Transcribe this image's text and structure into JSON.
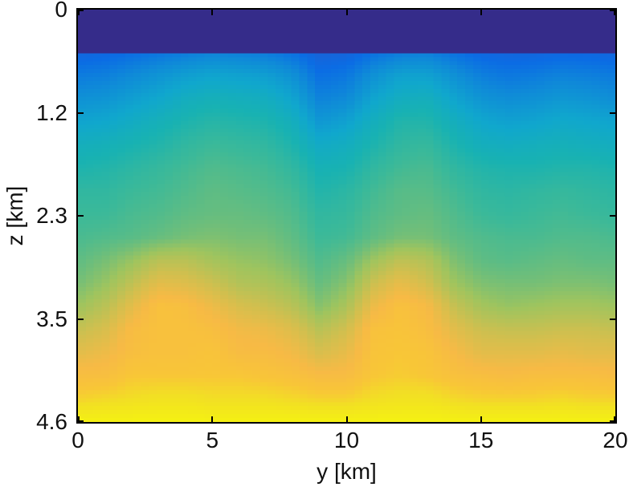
{
  "figure": {
    "background_color": "#ffffff",
    "frame_color": "#000000",
    "text_color": "#111111"
  },
  "chart_data": {
    "type": "heatmap",
    "title": "",
    "xlabel": "y [km]",
    "ylabel": "z [km]",
    "xlim": [
      0,
      20
    ],
    "zlim": [
      0,
      4.6
    ],
    "x_ticks": [
      "0",
      "5",
      "10",
      "15",
      "20"
    ],
    "x_tick_values": [
      0,
      5,
      10,
      15,
      20
    ],
    "z_ticks": [
      "0",
      "1.2",
      "2.3",
      "3.5",
      "4.6"
    ],
    "z_tick_values": [
      0,
      1.15,
      2.3,
      3.45,
      4.6
    ],
    "grid_lines": false,
    "legend": "none",
    "colormap": {
      "name": "parula-like",
      "stops": [
        [
          0.0,
          "#352c8a"
        ],
        [
          0.1,
          "#3351c1"
        ],
        [
          0.25,
          "#0b6ce4"
        ],
        [
          0.33,
          "#0f8ad8"
        ],
        [
          0.42,
          "#10a7cd"
        ],
        [
          0.5,
          "#18b2b2"
        ],
        [
          0.57,
          "#3bb999"
        ],
        [
          0.64,
          "#6dbe7b"
        ],
        [
          0.7,
          "#9fc45e"
        ],
        [
          0.78,
          "#d2bf4e"
        ],
        [
          0.85,
          "#f7ba45"
        ],
        [
          0.9,
          "#f8c637"
        ],
        [
          0.94,
          "#f2df24"
        ],
        [
          1.0,
          "#f4f112"
        ]
      ]
    },
    "water_layer": {
      "depth_km": 0.47,
      "value": 0.0
    },
    "grid": {
      "comment": "Normalized velocity values v in [0,1]; rows top-to-bottom spanning z0..z1 km, cols left-to-right spanning x0..x1 km",
      "x0": 0,
      "x1": 20,
      "z0": 0.47,
      "z1": 4.6,
      "ncols": 21,
      "nrows": 17,
      "values": [
        [
          0.22,
          0.23,
          0.25,
          0.27,
          0.29,
          0.31,
          0.3,
          0.29,
          0.26,
          0.2,
          0.21,
          0.26,
          0.29,
          0.3,
          0.26,
          0.23,
          0.22,
          0.22,
          0.23,
          0.23,
          0.22
        ],
        [
          0.29,
          0.3,
          0.33,
          0.36,
          0.39,
          0.41,
          0.4,
          0.39,
          0.35,
          0.26,
          0.28,
          0.35,
          0.4,
          0.4,
          0.35,
          0.3,
          0.28,
          0.29,
          0.31,
          0.3,
          0.29
        ],
        [
          0.35,
          0.36,
          0.39,
          0.42,
          0.46,
          0.48,
          0.47,
          0.46,
          0.41,
          0.31,
          0.33,
          0.41,
          0.46,
          0.47,
          0.41,
          0.36,
          0.34,
          0.35,
          0.37,
          0.36,
          0.34
        ],
        [
          0.41,
          0.42,
          0.45,
          0.48,
          0.51,
          0.53,
          0.52,
          0.51,
          0.47,
          0.37,
          0.4,
          0.47,
          0.52,
          0.52,
          0.47,
          0.42,
          0.4,
          0.41,
          0.43,
          0.42,
          0.41
        ],
        [
          0.47,
          0.48,
          0.5,
          0.52,
          0.55,
          0.57,
          0.56,
          0.55,
          0.51,
          0.44,
          0.46,
          0.51,
          0.55,
          0.56,
          0.51,
          0.47,
          0.46,
          0.47,
          0.48,
          0.47,
          0.46
        ],
        [
          0.51,
          0.52,
          0.54,
          0.56,
          0.58,
          0.6,
          0.59,
          0.58,
          0.55,
          0.49,
          0.5,
          0.55,
          0.58,
          0.59,
          0.55,
          0.52,
          0.51,
          0.51,
          0.52,
          0.52,
          0.51
        ],
        [
          0.55,
          0.55,
          0.57,
          0.58,
          0.6,
          0.62,
          0.61,
          0.6,
          0.58,
          0.52,
          0.54,
          0.58,
          0.61,
          0.61,
          0.58,
          0.55,
          0.54,
          0.55,
          0.56,
          0.55,
          0.54
        ],
        [
          0.57,
          0.57,
          0.59,
          0.6,
          0.62,
          0.63,
          0.63,
          0.62,
          0.6,
          0.55,
          0.56,
          0.6,
          0.62,
          0.63,
          0.6,
          0.57,
          0.56,
          0.57,
          0.58,
          0.57,
          0.56
        ],
        [
          0.59,
          0.6,
          0.61,
          0.63,
          0.65,
          0.66,
          0.65,
          0.65,
          0.62,
          0.57,
          0.58,
          0.62,
          0.65,
          0.65,
          0.62,
          0.6,
          0.59,
          0.59,
          0.6,
          0.6,
          0.59
        ],
        [
          0.62,
          0.65,
          0.69,
          0.74,
          0.74,
          0.71,
          0.69,
          0.68,
          0.65,
          0.6,
          0.63,
          0.7,
          0.75,
          0.73,
          0.66,
          0.62,
          0.61,
          0.62,
          0.63,
          0.62,
          0.62
        ],
        [
          0.65,
          0.69,
          0.75,
          0.81,
          0.8,
          0.77,
          0.73,
          0.72,
          0.69,
          0.63,
          0.67,
          0.77,
          0.82,
          0.78,
          0.7,
          0.66,
          0.65,
          0.65,
          0.66,
          0.66,
          0.65
        ],
        [
          0.7,
          0.74,
          0.81,
          0.88,
          0.87,
          0.83,
          0.79,
          0.77,
          0.74,
          0.67,
          0.72,
          0.83,
          0.88,
          0.85,
          0.76,
          0.71,
          0.69,
          0.7,
          0.71,
          0.71,
          0.7
        ],
        [
          0.76,
          0.79,
          0.86,
          0.88,
          0.88,
          0.87,
          0.84,
          0.83,
          0.8,
          0.74,
          0.78,
          0.88,
          0.89,
          0.87,
          0.81,
          0.77,
          0.76,
          0.76,
          0.77,
          0.77,
          0.76
        ],
        [
          0.81,
          0.83,
          0.87,
          0.88,
          0.88,
          0.89,
          0.86,
          0.86,
          0.84,
          0.79,
          0.82,
          0.89,
          0.9,
          0.89,
          0.85,
          0.81,
          0.81,
          0.81,
          0.82,
          0.81,
          0.81
        ],
        [
          0.87,
          0.87,
          0.9,
          0.9,
          0.9,
          0.9,
          0.9,
          0.89,
          0.88,
          0.86,
          0.86,
          0.9,
          0.91,
          0.9,
          0.88,
          0.87,
          0.86,
          0.87,
          0.87,
          0.87,
          0.86
        ],
        [
          0.92,
          0.93,
          0.94,
          0.95,
          0.95,
          0.94,
          0.94,
          0.94,
          0.93,
          0.92,
          0.92,
          0.94,
          0.95,
          0.95,
          0.93,
          0.92,
          0.92,
          0.92,
          0.93,
          0.92,
          0.92
        ],
        [
          1.0,
          1.0,
          1.0,
          1.0,
          1.0,
          1.0,
          1.0,
          1.0,
          1.0,
          1.0,
          1.0,
          1.0,
          1.0,
          1.0,
          1.0,
          1.0,
          1.0,
          1.0,
          1.0,
          1.0,
          1.0
        ]
      ]
    }
  }
}
